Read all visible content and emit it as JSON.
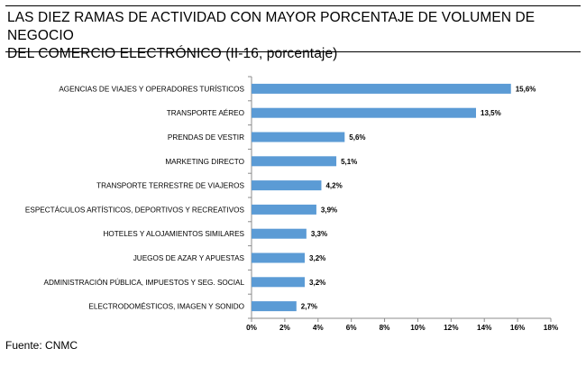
{
  "header": {
    "title_line1": "LAS DIEZ RAMAS DE ACTIVIDAD CON MAYOR PORCENTAJE DE VOLUMEN DE NEGOCIO",
    "title_line2": "DEL COMERCIO ELECTRÓNICO (II-16, porcentaje)"
  },
  "footer": {
    "source": "Fuente: CNMC"
  },
  "colors": {
    "bar": "#5b9bd5",
    "axis": "#8c8c8c"
  },
  "chart_data": {
    "type": "bar",
    "orientation": "horizontal",
    "title": "LAS DIEZ RAMAS DE ACTIVIDAD CON MAYOR PORCENTAJE DE VOLUMEN DE NEGOCIO DEL COMERCIO ELECTRÓNICO (II-16, porcentaje)",
    "categories": [
      "AGENCIAS DE VIAJES Y OPERADORES TURÍSTICOS",
      "TRANSPORTE AÉREO",
      "PRENDAS DE VESTIR",
      "MARKETING DIRECTO",
      "TRANSPORTE TERRESTRE DE VIAJEROS",
      "ESPECTÁCULOS ARTÍSTICOS, DEPORTIVOS Y RECREATIVOS",
      "HOTELES  Y ALOJAMIENTOS SIMILARES",
      "JUEGOS DE AZAR Y APUESTAS",
      "ADMINISTRACIÓN PÚBLICA, IMPUESTOS Y SEG. SOCIAL",
      "ELECTRODOMÉSTICOS,  IMAGEN Y SONIDO"
    ],
    "values": [
      15.6,
      13.5,
      5.6,
      5.1,
      4.2,
      3.9,
      3.3,
      3.2,
      3.2,
      2.7
    ],
    "value_labels": [
      "15,6%",
      "13,5%",
      "5,6%",
      "5,1%",
      "4,2%",
      "3,9%",
      "3,3%",
      "3,2%",
      "3,2%",
      "2,7%"
    ],
    "xlim": [
      0,
      18
    ],
    "xticks": [
      0,
      2,
      4,
      6,
      8,
      10,
      12,
      14,
      16,
      18
    ],
    "xtick_labels": [
      "0%",
      "2%",
      "4%",
      "6%",
      "8%",
      "10%",
      "12%",
      "14%",
      "16%",
      "18%"
    ],
    "grid": false,
    "legend": "none"
  }
}
